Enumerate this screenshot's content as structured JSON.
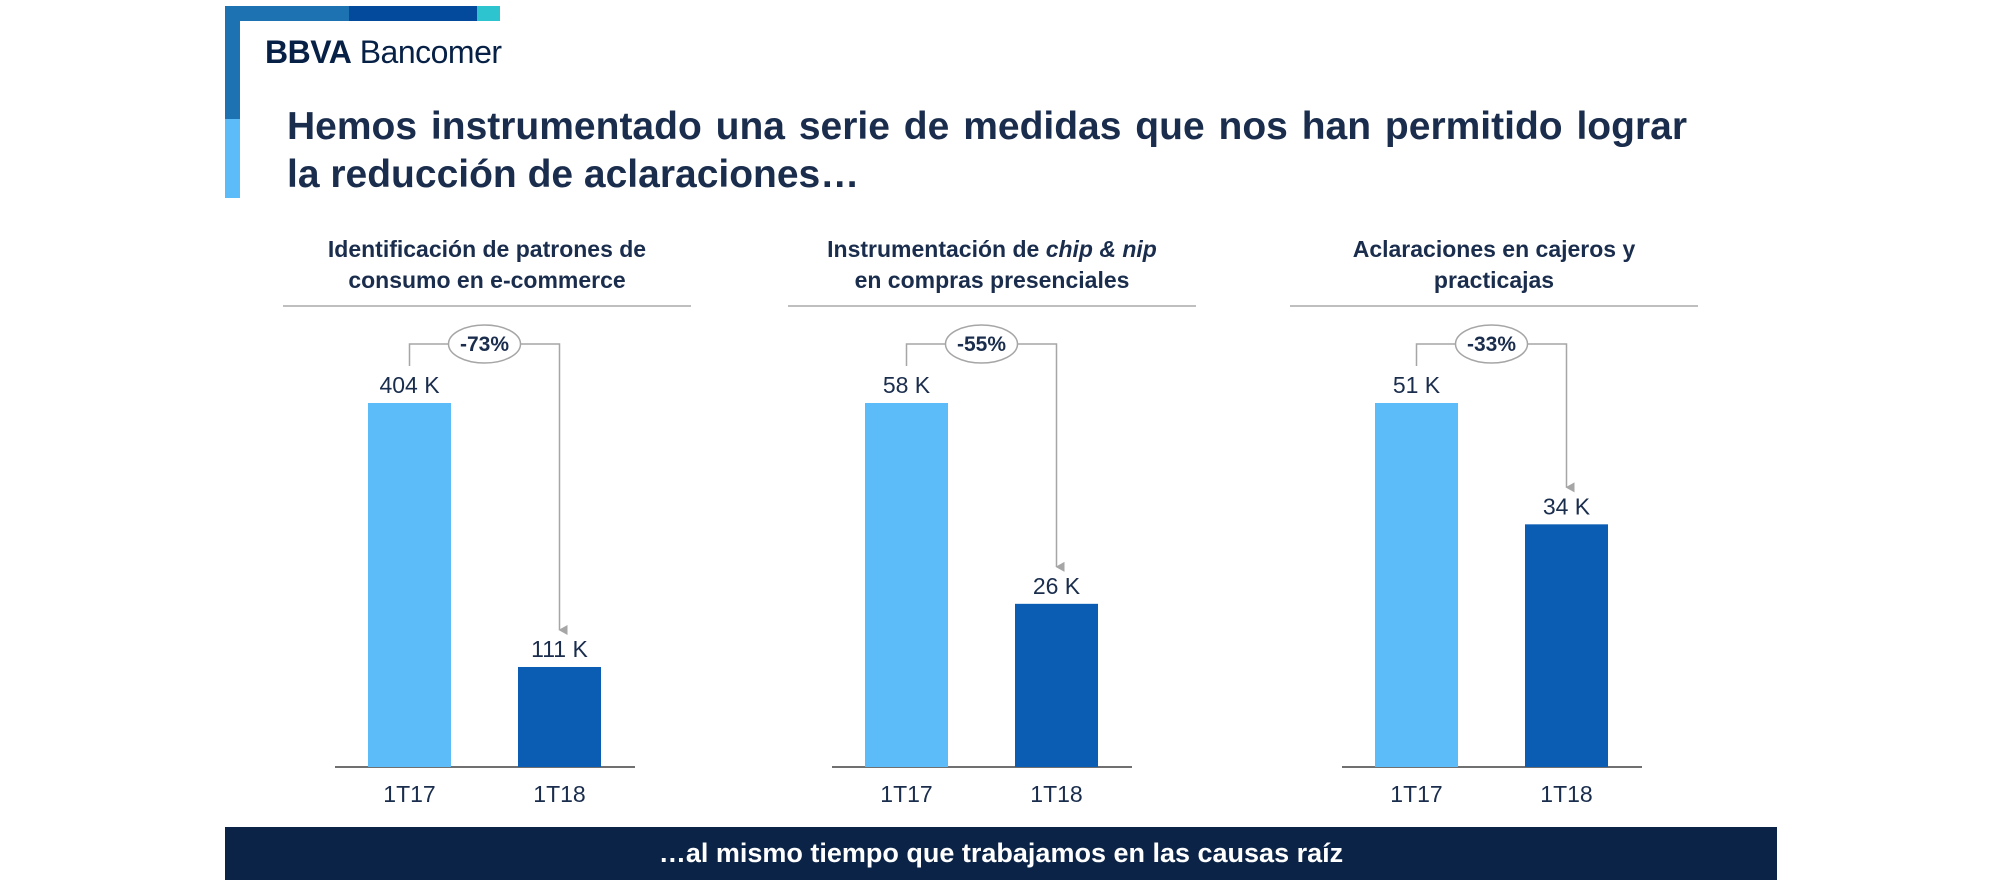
{
  "brand": {
    "part1": "BBVA",
    "part2": " Bancomer"
  },
  "headline": "Hemos instrumentado una serie de medidas que nos han permitido lograr la reducción de aclaraciones…",
  "footer": "…al mismo tiempo que trabajamos en las causas raíz",
  "colors": {
    "bar_1T17": "#5bbcf9",
    "bar_1T18": "#0a5db3",
    "title": "#1a2d4d",
    "footer_bg": "#0b2346",
    "top_stripe": [
      "#1d73b2",
      "#044a9c",
      "#2ec4cf"
    ],
    "side_stripe": [
      "#1d73b2",
      "#5bbcf9"
    ]
  },
  "panels": [
    {
      "title_line1": "Identificación  de patrones de",
      "title_line2": "consumo en e-commerce"
    },
    {
      "title_line1_pre": "Instrumentación de ",
      "title_line1_em": "chip & nip",
      "title_line2": "en compras presenciales"
    },
    {
      "title_line1": "Aclaraciones en cajeros y",
      "title_line2": "practicajas"
    }
  ],
  "chart_data": [
    {
      "type": "bar",
      "title": "Identificación de patrones de consumo en e-commerce",
      "categories": [
        "1T17",
        "1T18"
      ],
      "values": [
        404,
        111
      ],
      "value_labels": [
        "404 K",
        "111 K"
      ],
      "change_label": "-73%",
      "unit": "K"
    },
    {
      "type": "bar",
      "title": "Instrumentación de chip & nip en compras presenciales",
      "categories": [
        "1T17",
        "1T18"
      ],
      "values": [
        58,
        26
      ],
      "value_labels": [
        "58 K",
        "26 K"
      ],
      "change_label": "-55%",
      "unit": "K"
    },
    {
      "type": "bar",
      "title": "Aclaraciones en cajeros y practicajas",
      "categories": [
        "1T17",
        "1T18"
      ],
      "values": [
        51,
        34
      ],
      "value_labels": [
        "51 K",
        "34 K"
      ],
      "change_label": "-33%",
      "unit": "K"
    }
  ]
}
